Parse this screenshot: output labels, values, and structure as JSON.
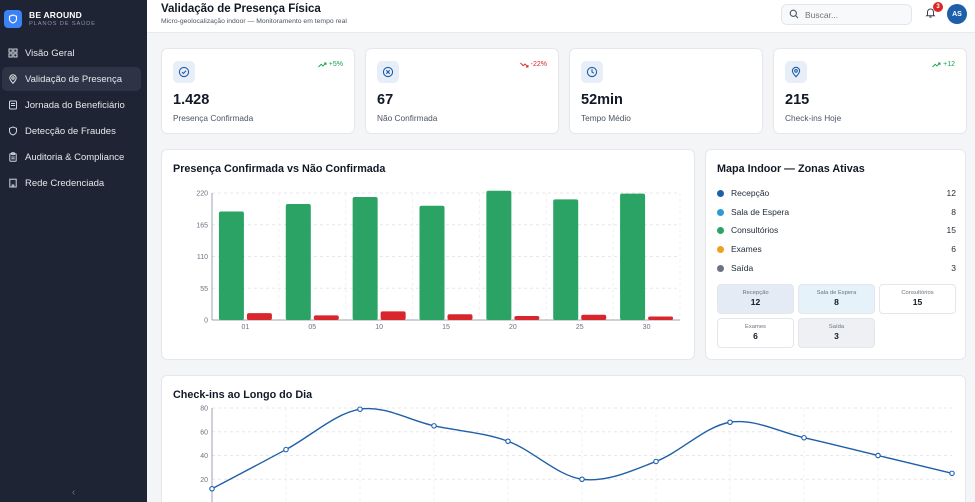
{
  "brand": {
    "name": "BE AROUND",
    "subtitle": "PLANOS DE SAÚDE"
  },
  "sidebar": {
    "items": [
      {
        "label": "Visão Geral",
        "icon": "grid-icon",
        "active": false
      },
      {
        "label": "Validação de Presença",
        "icon": "location-pin-icon",
        "active": true
      },
      {
        "label": "Jornada do Beneficiário",
        "icon": "route-icon",
        "active": false
      },
      {
        "label": "Detecção de Fraudes",
        "icon": "shield-icon",
        "active": false
      },
      {
        "label": "Auditoria & Compliance",
        "icon": "clipboard-icon",
        "active": false
      },
      {
        "label": "Rede Credenciada",
        "icon": "building-icon",
        "active": false
      }
    ],
    "collapse_glyph": "‹"
  },
  "header": {
    "title": "Validação de Presença Física",
    "subtitle": "Micro-geolocalização indoor — Monitoramento em tempo real",
    "search_placeholder": "Buscar...",
    "notification_count": "3",
    "avatar_initials": "AS"
  },
  "kpis": [
    {
      "value": "1.428",
      "label": "Presença Confirmada",
      "delta": "+5%",
      "trend": "up",
      "icon": "check-circle-icon"
    },
    {
      "value": "67",
      "label": "Não Confirmada",
      "delta": "-22%",
      "trend": "down",
      "icon": "x-circle-icon"
    },
    {
      "value": "52min",
      "label": "Tempo Médio",
      "delta": "",
      "trend": "none",
      "icon": "clock-icon"
    },
    {
      "value": "215",
      "label": "Check-ins Hoje",
      "delta": "+12",
      "trend": "up",
      "icon": "map-pin-icon"
    }
  ],
  "colors": {
    "confirmed": "#2aa365",
    "unconfirmed": "#d9262c",
    "line": "#1f5fa8",
    "accent": "#3b82f6"
  },
  "map": {
    "title": "Mapa Indoor — Zonas Ativas",
    "zones": [
      {
        "name": "Recepção",
        "count": "12",
        "color": "#1f5fa8",
        "tile_bg": "#e4ebf5"
      },
      {
        "name": "Sala de Espera",
        "count": "8",
        "color": "#2b9bd6",
        "tile_bg": "#e5f2fa"
      },
      {
        "name": "Consultórios",
        "count": "15",
        "color": "#2aa365",
        "tile_bg": "#ffffff"
      },
      {
        "name": "Exames",
        "count": "6",
        "color": "#f0a020",
        "tile_bg": "#ffffff"
      },
      {
        "name": "Saída",
        "count": "3",
        "color": "#6b7280",
        "tile_bg": "#eef0f3"
      }
    ]
  },
  "chart_data": [
    {
      "type": "bar",
      "title": "Presença Confirmada vs Não Confirmada",
      "categories": [
        "01",
        "05",
        "10",
        "15",
        "20",
        "25",
        "30"
      ],
      "series": [
        {
          "values": [
            188,
            201,
            213,
            198,
            224,
            209,
            219
          ]
        },
        {
          "values": [
            12,
            8,
            15,
            10,
            7,
            9,
            6
          ]
        }
      ],
      "yticks": [
        0,
        55,
        110,
        165,
        220
      ],
      "ylim": [
        0,
        220
      ],
      "grid": true
    },
    {
      "type": "line",
      "title": "Check-ins ao Longo do Dia",
      "values": [
        12,
        45,
        79,
        65,
        52,
        20,
        35,
        68,
        55,
        40,
        25
      ],
      "yticks": [
        20,
        40,
        60,
        80
      ],
      "ylim": [
        0,
        80
      ],
      "grid": true
    }
  ]
}
